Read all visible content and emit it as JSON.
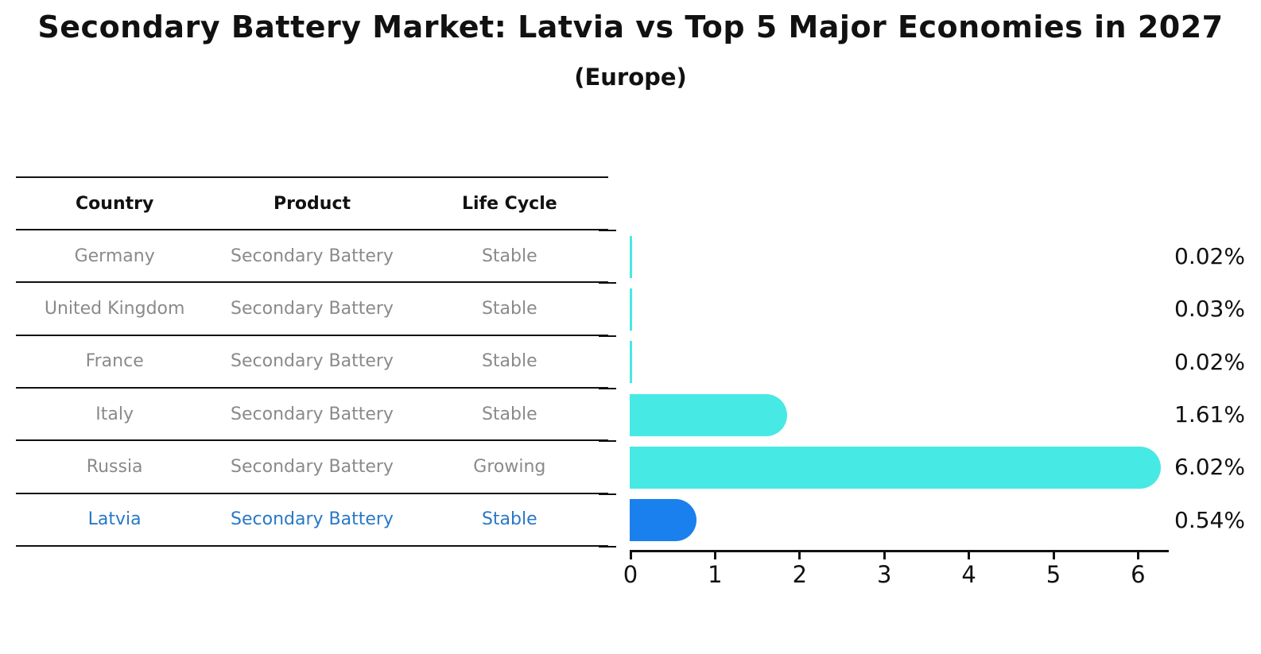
{
  "title": "Secondary Battery Market: Latvia vs Top 5 Major Economies in 2027",
  "subtitle": "(Europe)",
  "table": {
    "headers": [
      "Country",
      "Product",
      "Life Cycle"
    ],
    "rows": [
      {
        "country": "Germany",
        "product": "Secondary Battery",
        "life_cycle": "Stable",
        "highlight": false
      },
      {
        "country": "United Kingdom",
        "product": "Secondary Battery",
        "life_cycle": "Stable",
        "highlight": false
      },
      {
        "country": "France",
        "product": "Secondary Battery",
        "life_cycle": "Stable",
        "highlight": false
      },
      {
        "country": "Italy",
        "product": "Secondary Battery",
        "life_cycle": "Stable",
        "highlight": false
      },
      {
        "country": "Russia",
        "product": "Secondary Battery",
        "life_cycle": "Growing",
        "highlight": false
      },
      {
        "country": "Latvia",
        "product": "Secondary Battery",
        "life_cycle": "Stable",
        "highlight": true
      }
    ]
  },
  "chart_data": {
    "type": "bar",
    "orientation": "horizontal",
    "title": "Secondary Battery Market: Latvia vs Top 5 Major Economies in 2027",
    "subtitle": "(Europe)",
    "categories": [
      "Germany",
      "United Kingdom",
      "France",
      "Italy",
      "Russia",
      "Latvia"
    ],
    "values": [
      0.02,
      0.03,
      0.02,
      1.61,
      6.02,
      0.54
    ],
    "value_labels": [
      "0.02%",
      "0.03%",
      "0.02%",
      "1.61%",
      "6.02%",
      "0.54%"
    ],
    "x_ticks": [
      "0",
      "1",
      "2",
      "3",
      "4",
      "5",
      "6"
    ],
    "xlim": [
      0,
      6.37
    ],
    "grid": false,
    "legend": "none",
    "highlight_index": 5,
    "colors": {
      "bar": "#47E9E4",
      "highlight_bar": "#1A80EE",
      "highlight_text": "#2878C8",
      "table_text": "#8A8A8A",
      "line": "#111111"
    }
  }
}
